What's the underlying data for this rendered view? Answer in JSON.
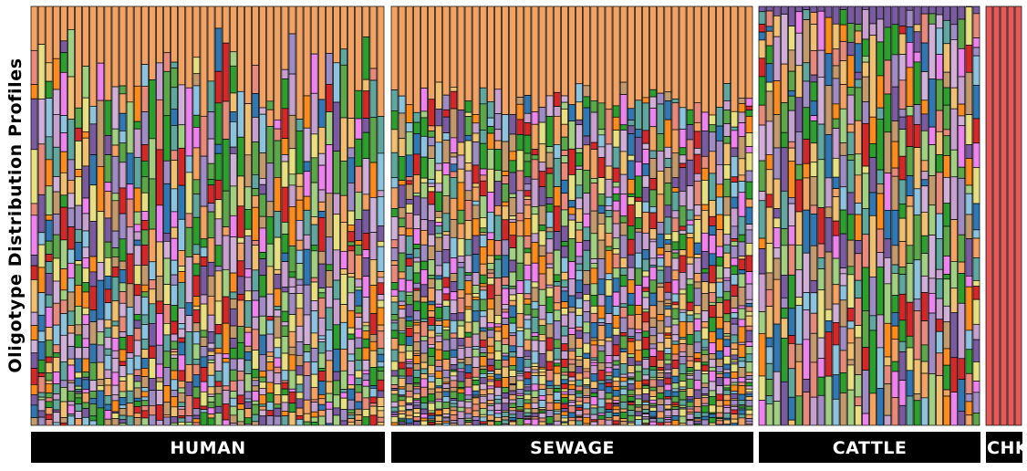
{
  "chart_data": {
    "type": "bar",
    "stacked": true,
    "normalized": true,
    "ylabel": "Oligotype Distribution Profiles",
    "groups": [
      {
        "label": "HUMAN",
        "bar_count": 48,
        "seed": 11,
        "top_color": "#f4a261",
        "top_share": [
          0.05,
          0.28
        ],
        "segments": [
          14,
          30
        ],
        "tail": true
      },
      {
        "label": "SEWAGE",
        "bar_count": 49,
        "seed": 23,
        "top_color": "#f4a261",
        "top_share": [
          0.18,
          0.26
        ],
        "segments": [
          30,
          44
        ],
        "tail": true
      },
      {
        "label": "CATTLE",
        "bar_count": 30,
        "seed": 37,
        "top_color": "#7a5aa0",
        "top_share": [
          0.0,
          0.05
        ],
        "segments": [
          10,
          22
        ],
        "tail": false
      },
      {
        "label": "CHK",
        "bar_count": 5,
        "seed": 41,
        "top_color": "#e85a5a",
        "top_share": [
          1.0,
          1.0
        ],
        "segments": [
          1,
          1
        ],
        "tail": false
      }
    ],
    "palette": [
      "#7a5aa0",
      "#5fa8a0",
      "#e8897a",
      "#2f78b4",
      "#a08cc4",
      "#e8e080",
      "#d62728",
      "#5aa848",
      "#f4a261",
      "#8cc4e0",
      "#ee82ee",
      "#2ca02c",
      "#a0d080",
      "#ff8c1a",
      "#c8a0d0",
      "#c49a6c",
      "#f0c070",
      "#d0b0d8"
    ]
  }
}
